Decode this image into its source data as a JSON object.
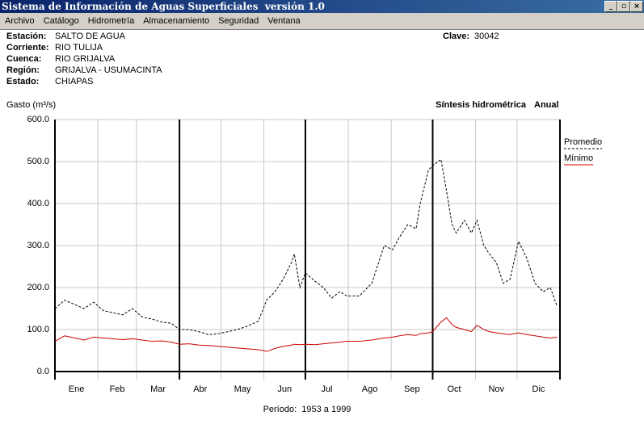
{
  "window": {
    "title": "Sistema de Información de Aguas Superficiales  versión 1.0"
  },
  "menu": [
    "Archivo",
    "Catálogo",
    "Hidrometría",
    "Almacenamiento",
    "Seguridad",
    "Ventana"
  ],
  "info": [
    {
      "label": "Estación:",
      "value": "SALTO DE AGUA"
    },
    {
      "label": "Corriente:",
      "value": "RIO TULIJA"
    },
    {
      "label": "Cuenca:",
      "value": "RIO GRIJALVA"
    },
    {
      "label": "Región:",
      "value": "GRIJALVA - USUMACINTA"
    },
    {
      "label": "Estado:",
      "value": "CHIAPAS"
    }
  ],
  "clave": {
    "label": "Clave:",
    "value": "30042"
  },
  "chart_data": {
    "type": "line",
    "title": "Síntesis hidrométrica",
    "subtitle": "Anual",
    "y_label": "Gasto (m³/s)",
    "footer": "Período:  1953 a 1999",
    "categories": [
      "Ene",
      "Feb",
      "Mar",
      "Abr",
      "May",
      "Jun",
      "Jul",
      "Ago",
      "Sep",
      "Oct",
      "Nov",
      "Dic"
    ],
    "x": [
      1,
      8,
      15,
      22,
      29,
      36,
      43,
      50,
      57,
      64,
      71,
      78,
      85,
      91,
      98,
      105,
      112,
      119,
      126,
      133,
      140,
      148,
      154,
      160,
      166,
      172,
      174,
      178,
      182,
      189,
      195,
      201,
      207,
      212,
      221,
      230,
      239,
      245,
      250,
      256,
      262,
      265,
      271,
      274,
      280,
      284,
      288,
      291,
      297,
      302,
      306,
      311,
      315,
      320,
      325,
      330,
      336,
      342,
      348,
      354,
      359,
      364
    ],
    "xlim": [
      1,
      366
    ],
    "xticks": [
      1,
      32,
      60,
      91,
      121,
      152,
      182,
      213,
      244,
      274,
      305,
      335,
      366
    ],
    "ylim": [
      0,
      600
    ],
    "yticks": [
      {
        "value": 0,
        "label": "0.0"
      },
      {
        "value": 100,
        "label": "100.0"
      },
      {
        "value": 200,
        "label": "200.0"
      },
      {
        "value": 300,
        "label": "300.0"
      },
      {
        "value": 400,
        "label": "400.0"
      },
      {
        "value": 500,
        "label": "500.0"
      },
      {
        "value": 600,
        "label": "600.0"
      }
    ],
    "grid": true,
    "legend": "right",
    "series": [
      {
        "name": "Promedio",
        "color": "#000000",
        "dash": true,
        "values": [
          150,
          170,
          160,
          150,
          165,
          145,
          140,
          135,
          150,
          130,
          125,
          118,
          115,
          100,
          100,
          95,
          88,
          90,
          95,
          100,
          108,
          120,
          170,
          190,
          220,
          260,
          280,
          200,
          235,
          215,
          200,
          175,
          190,
          180,
          180,
          210,
          300,
          290,
          320,
          350,
          340,
          400,
          480,
          490,
          505,
          430,
          350,
          330,
          360,
          330,
          360,
          300,
          280,
          260,
          210,
          220,
          310,
          270,
          210,
          190,
          200,
          155
        ]
      },
      {
        "name": "Mínimo",
        "color": "#cc0000",
        "dash": false,
        "values": [
          72,
          85,
          80,
          75,
          82,
          80,
          78,
          76,
          78,
          75,
          72,
          73,
          70,
          65,
          66,
          63,
          62,
          60,
          58,
          56,
          54,
          52,
          48,
          55,
          60,
          63,
          65,
          64,
          65,
          64,
          66,
          68,
          70,
          72,
          72,
          75,
          80,
          82,
          85,
          88,
          86,
          90,
          92,
          95,
          118,
          128,
          112,
          105,
          100,
          95,
          110,
          100,
          95,
          92,
          90,
          88,
          92,
          88,
          85,
          82,
          80,
          82
        ]
      }
    ]
  }
}
